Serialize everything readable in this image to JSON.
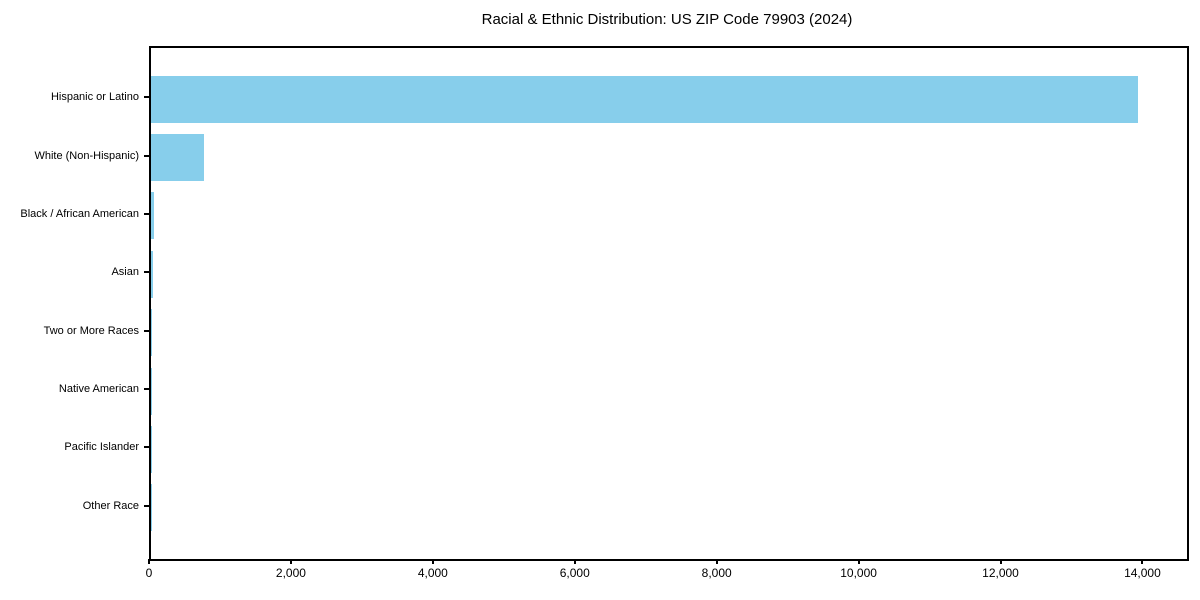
{
  "chart_data": {
    "type": "bar",
    "orientation": "horizontal",
    "title": "Racial & Ethnic Distribution: US ZIP Code 79903 (2024)",
    "categories": [
      "Hispanic or Latino",
      "White (Non-Hispanic)",
      "Black / African American",
      "Asian",
      "Two or More Races",
      "Native American",
      "Pacific Islander",
      "Other Race"
    ],
    "values": [
      13910,
      745,
      40,
      25,
      15,
      10,
      5,
      5
    ],
    "xlabel": "",
    "ylabel": "",
    "xlim": [
      0,
      14600
    ],
    "x_ticks": [
      0,
      2000,
      4000,
      6000,
      8000,
      10000,
      12000,
      14000
    ],
    "x_tick_labels": [
      "0",
      "2,000",
      "4,000",
      "6,000",
      "8,000",
      "10,000",
      "12,000",
      "14,000"
    ],
    "bar_color": "#87CEEB",
    "axis_color": "#000000",
    "background_color": "#FFFFFF",
    "grid": false,
    "legend": "none"
  }
}
